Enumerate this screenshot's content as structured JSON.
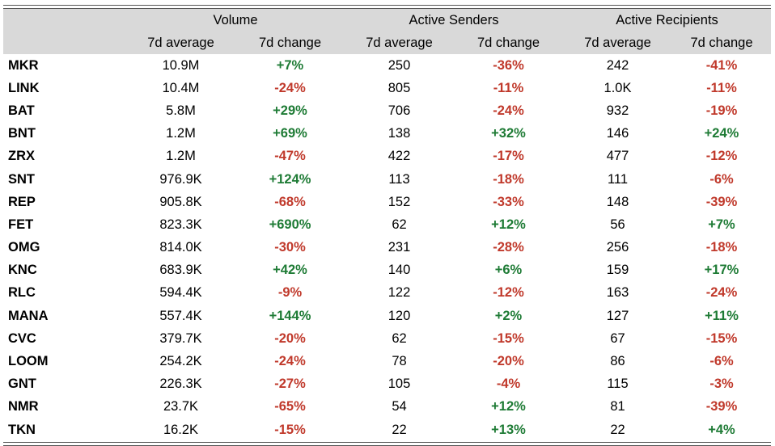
{
  "header": {
    "groups": [
      "Volume",
      "Active Senders",
      "Active Recipients"
    ],
    "subheaders": [
      "7d average",
      "7d change",
      "7d average",
      "7d change",
      "7d average",
      "7d change"
    ]
  },
  "colors": {
    "header_bg": "#d9d9d9",
    "positive": "#1e7b35",
    "negative": "#c0392b"
  },
  "rows": [
    {
      "ticker": "MKR",
      "vol_avg": "10.9M",
      "vol_chg": "+7%",
      "snd_avg": "250",
      "snd_chg": "-36%",
      "rcp_avg": "242",
      "rcp_chg": "-41%"
    },
    {
      "ticker": "LINK",
      "vol_avg": "10.4M",
      "vol_chg": "-24%",
      "snd_avg": "805",
      "snd_chg": "-11%",
      "rcp_avg": "1.0K",
      "rcp_chg": "-11%"
    },
    {
      "ticker": "BAT",
      "vol_avg": "5.8M",
      "vol_chg": "+29%",
      "snd_avg": "706",
      "snd_chg": "-24%",
      "rcp_avg": "932",
      "rcp_chg": "-19%"
    },
    {
      "ticker": "BNT",
      "vol_avg": "1.2M",
      "vol_chg": "+69%",
      "snd_avg": "138",
      "snd_chg": "+32%",
      "rcp_avg": "146",
      "rcp_chg": "+24%"
    },
    {
      "ticker": "ZRX",
      "vol_avg": "1.2M",
      "vol_chg": "-47%",
      "snd_avg": "422",
      "snd_chg": "-17%",
      "rcp_avg": "477",
      "rcp_chg": "-12%"
    },
    {
      "ticker": "SNT",
      "vol_avg": "976.9K",
      "vol_chg": "+124%",
      "snd_avg": "113",
      "snd_chg": "-18%",
      "rcp_avg": "111",
      "rcp_chg": "-6%"
    },
    {
      "ticker": "REP",
      "vol_avg": "905.8K",
      "vol_chg": "-68%",
      "snd_avg": "152",
      "snd_chg": "-33%",
      "rcp_avg": "148",
      "rcp_chg": "-39%"
    },
    {
      "ticker": "FET",
      "vol_avg": "823.3K",
      "vol_chg": "+690%",
      "snd_avg": "62",
      "snd_chg": "+12%",
      "rcp_avg": "56",
      "rcp_chg": "+7%"
    },
    {
      "ticker": "OMG",
      "vol_avg": "814.0K",
      "vol_chg": "-30%",
      "snd_avg": "231",
      "snd_chg": "-28%",
      "rcp_avg": "256",
      "rcp_chg": "-18%"
    },
    {
      "ticker": "KNC",
      "vol_avg": "683.9K",
      "vol_chg": "+42%",
      "snd_avg": "140",
      "snd_chg": "+6%",
      "rcp_avg": "159",
      "rcp_chg": "+17%"
    },
    {
      "ticker": "RLC",
      "vol_avg": "594.4K",
      "vol_chg": "-9%",
      "snd_avg": "122",
      "snd_chg": "-12%",
      "rcp_avg": "163",
      "rcp_chg": "-24%"
    },
    {
      "ticker": "MANA",
      "vol_avg": "557.4K",
      "vol_chg": "+144%",
      "snd_avg": "120",
      "snd_chg": "+2%",
      "rcp_avg": "127",
      "rcp_chg": "+11%"
    },
    {
      "ticker": "CVC",
      "vol_avg": "379.7K",
      "vol_chg": "-20%",
      "snd_avg": "62",
      "snd_chg": "-15%",
      "rcp_avg": "67",
      "rcp_chg": "-15%"
    },
    {
      "ticker": "LOOM",
      "vol_avg": "254.2K",
      "vol_chg": "-24%",
      "snd_avg": "78",
      "snd_chg": "-20%",
      "rcp_avg": "86",
      "rcp_chg": "-6%"
    },
    {
      "ticker": "GNT",
      "vol_avg": "226.3K",
      "vol_chg": "-27%",
      "snd_avg": "105",
      "snd_chg": "-4%",
      "rcp_avg": "115",
      "rcp_chg": "-3%"
    },
    {
      "ticker": "NMR",
      "vol_avg": "23.7K",
      "vol_chg": "-65%",
      "snd_avg": "54",
      "snd_chg": "+12%",
      "rcp_avg": "81",
      "rcp_chg": "-39%"
    },
    {
      "ticker": "TKN",
      "vol_avg": "16.2K",
      "vol_chg": "-15%",
      "snd_avg": "22",
      "snd_chg": "+13%",
      "rcp_avg": "22",
      "rcp_chg": "+4%"
    }
  ]
}
